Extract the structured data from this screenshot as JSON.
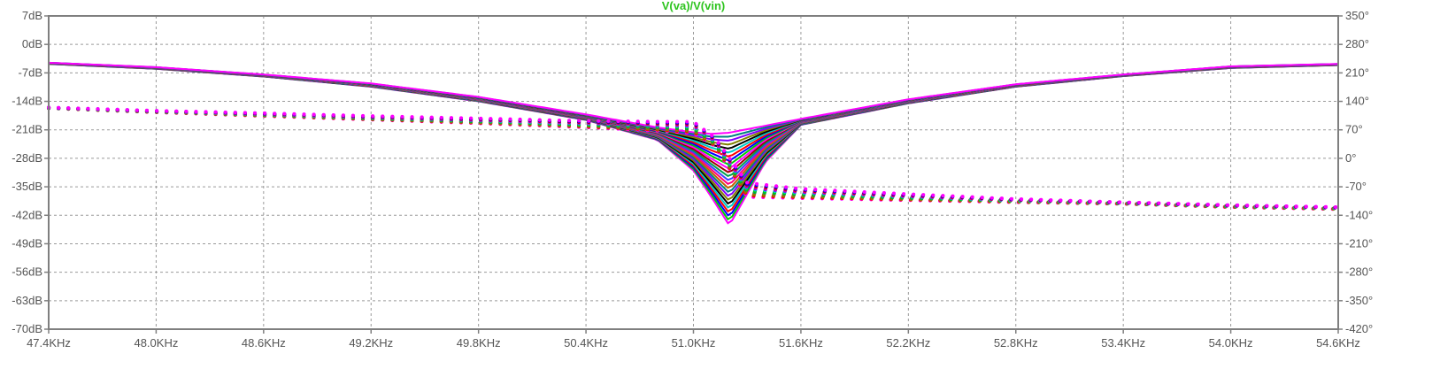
{
  "chart_data": {
    "type": "line",
    "title": "V(va)/V(vin)",
    "xlabel": "",
    "ylabel": "",
    "x_unit": "KHz",
    "x_range": [
      47.4,
      54.6
    ],
    "x_ticks": [
      "47.4KHz",
      "48.0KHz",
      "48.6KHz",
      "49.2KHz",
      "49.8KHz",
      "50.4KHz",
      "51.0KHz",
      "51.6KHz",
      "52.2KHz",
      "52.8KHz",
      "53.4KHz",
      "54.0KHz",
      "54.6KHz"
    ],
    "y_left_range": [
      -70,
      7
    ],
    "y_left_ticks": [
      "7dB",
      "0dB",
      "-7dB",
      "-14dB",
      "-21dB",
      "-28dB",
      "-35dB",
      "-42dB",
      "-49dB",
      "-56dB",
      "-63dB",
      "-70dB"
    ],
    "y_right_range": [
      -420,
      350
    ],
    "y_right_ticks": [
      "350°",
      "280°",
      "210°",
      "140°",
      "70°",
      "0°",
      "-70°",
      "-140°",
      "-210°",
      "-280°",
      "-350°",
      "-420°"
    ],
    "grid": true,
    "series_note": "",
    "magnitude_profile": {
      "x": [
        47.4,
        48.0,
        48.6,
        49.2,
        49.8,
        50.4,
        50.8,
        51.0,
        51.1,
        51.2,
        51.4,
        51.6,
        52.2,
        52.8,
        53.4,
        54.0,
        54.6
      ],
      "upper_db": [
        -4.5,
        -5.6,
        -7.4,
        -9.6,
        -12.9,
        -17.2,
        -20.4,
        -21.6,
        -22.0,
        -21.7,
        -20.0,
        -18.3,
        -13.5,
        -9.8,
        -7.4,
        -5.4,
        -4.8
      ],
      "lower_db": [
        -4.8,
        -6.0,
        -7.9,
        -10.4,
        -14.0,
        -18.6,
        -23.5,
        -31.0,
        -37.5,
        -44.5,
        -29.0,
        -19.8,
        -14.5,
        -10.4,
        -7.8,
        -5.8,
        -5.1
      ],
      "notch_x": 51.26
    },
    "phase_profile": {
      "x": [
        47.4,
        48.0,
        48.6,
        49.2,
        49.8,
        50.4,
        50.8,
        51.0,
        51.12,
        51.3,
        51.6,
        52.2,
        52.8,
        53.4,
        54.0,
        54.6
      ],
      "upper_deg": [
        125,
        117,
        111,
        104,
        98,
        92,
        90,
        90,
        50,
        -60,
        -75,
        -88,
        -100,
        -108,
        -115,
        -120
      ],
      "lower_deg": [
        123,
        113,
        104,
        95,
        86,
        76,
        68,
        62,
        30,
        -95,
        -98,
        -103,
        -108,
        -112,
        -120,
        -125
      ]
    },
    "colors": [
      "#ff00ff",
      "#00cc00",
      "#0000ff",
      "#ff0000",
      "#00c8c8",
      "#000000",
      "#808000",
      "#8000ff",
      "#008080",
      "#c06000",
      "#ff0080",
      "#4040ff",
      "#00a050",
      "#a00000"
    ],
    "last_color": "#ff00ff"
  }
}
